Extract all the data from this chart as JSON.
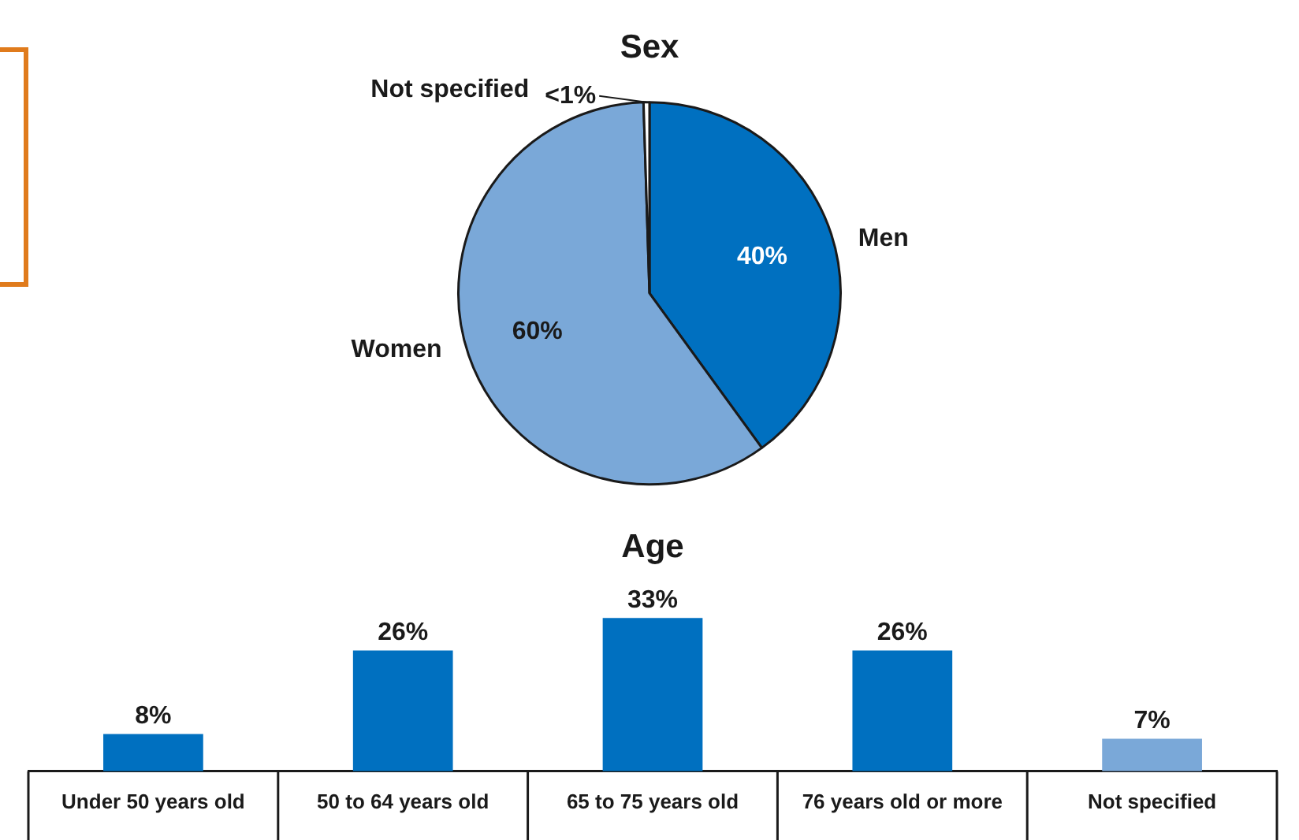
{
  "chart_data": [
    {
      "type": "pie",
      "title": "Sex",
      "categories": [
        "Men",
        "Women",
        "Not specified"
      ],
      "values": [
        40,
        59.5,
        0.5
      ],
      "colors": [
        "#0070c0",
        "#7aa8d8",
        "#ffffff"
      ],
      "value_labels": [
        "40%",
        "60%",
        "<1%"
      ],
      "legend": false
    },
    {
      "type": "bar",
      "title": "Age",
      "categories": [
        "Under 50 years old",
        "50 to 64 years old",
        "65 to 75 years old",
        "76 years old or more",
        "Not specified"
      ],
      "values": [
        8,
        26,
        33,
        26,
        7
      ],
      "colors": [
        "#0070c0",
        "#0070c0",
        "#0070c0",
        "#0070c0",
        "#7aa8d8"
      ],
      "value_labels": [
        "8%",
        "26%",
        "33%",
        "26%",
        "7%"
      ],
      "legend": false
    }
  ]
}
